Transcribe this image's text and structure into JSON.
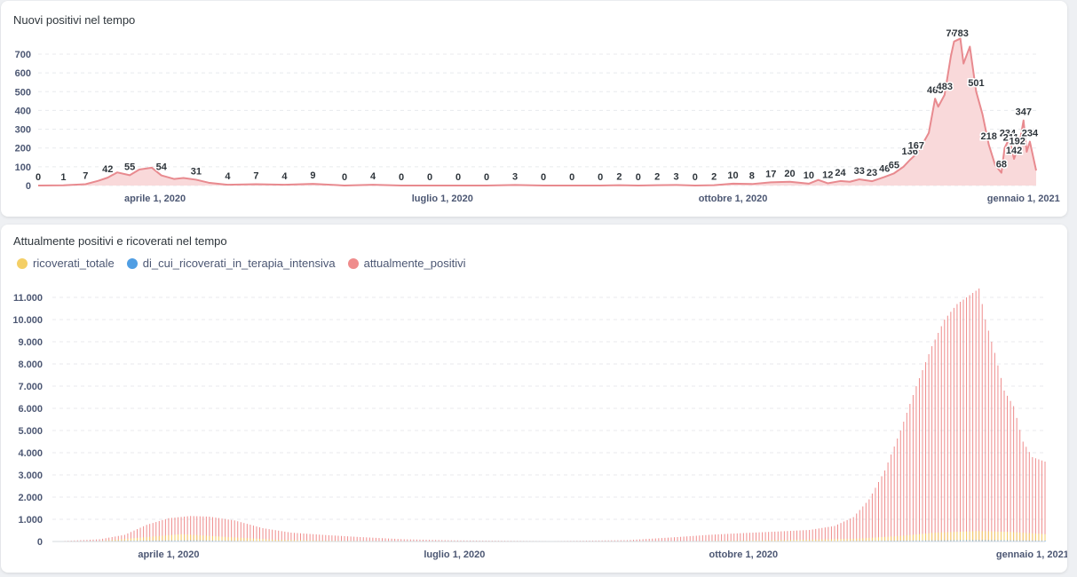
{
  "colors": {
    "line": "#e88a8f",
    "area": "#f9d9da",
    "ricoverati": "#f4cf66",
    "terapia": "#509ee3",
    "attualmente": "#ef8c8c"
  },
  "chart_data": [
    {
      "type": "area",
      "title": "Nuovi positivi nel tempo",
      "xlabel": "",
      "ylabel": "",
      "x_range": [
        "2020-02-24",
        "2021-01-05"
      ],
      "x_ticks": [
        {
          "date": "2020-04-01",
          "label": "aprile 1, 2020"
        },
        {
          "date": "2020-07-01",
          "label": "luglio 1, 2020"
        },
        {
          "date": "2020-10-01",
          "label": "ottobre 1, 2020"
        },
        {
          "date": "2021-01-01",
          "label": "gennaio 1, 2021"
        }
      ],
      "ylim": [
        0,
        700
      ],
      "y_ticks": [
        0,
        100,
        200,
        300,
        400,
        500,
        600,
        700
      ],
      "grid": true,
      "series": [
        {
          "points": [
            [
              "2020-02-24",
              0
            ],
            [
              "2020-03-03",
              1
            ],
            [
              "2020-03-10",
              7
            ],
            [
              "2020-03-14",
              25
            ],
            [
              "2020-03-17",
              42
            ],
            [
              "2020-03-20",
              70
            ],
            [
              "2020-03-24",
              55
            ],
            [
              "2020-03-27",
              85
            ],
            [
              "2020-03-31",
              95
            ],
            [
              "2020-04-03",
              54
            ],
            [
              "2020-04-07",
              35
            ],
            [
              "2020-04-10",
              40
            ],
            [
              "2020-04-14",
              31
            ],
            [
              "2020-04-18",
              15
            ],
            [
              "2020-04-24",
              4
            ],
            [
              "2020-05-03",
              7
            ],
            [
              "2020-05-12",
              4
            ],
            [
              "2020-05-21",
              9
            ],
            [
              "2020-05-31",
              0
            ],
            [
              "2020-06-09",
              4
            ],
            [
              "2020-06-18",
              0
            ],
            [
              "2020-06-27",
              0
            ],
            [
              "2020-07-06",
              0
            ],
            [
              "2020-07-15",
              0
            ],
            [
              "2020-07-24",
              3
            ],
            [
              "2020-08-02",
              0
            ],
            [
              "2020-08-11",
              0
            ],
            [
              "2020-08-20",
              0
            ],
            [
              "2020-08-26",
              2
            ],
            [
              "2020-09-01",
              0
            ],
            [
              "2020-09-07",
              2
            ],
            [
              "2020-09-13",
              3
            ],
            [
              "2020-09-19",
              0
            ],
            [
              "2020-09-25",
              2
            ],
            [
              "2020-10-01",
              10
            ],
            [
              "2020-10-07",
              8
            ],
            [
              "2020-10-13",
              17
            ],
            [
              "2020-10-19",
              20
            ],
            [
              "2020-10-25",
              10
            ],
            [
              "2020-10-28",
              30
            ],
            [
              "2020-10-31",
              12
            ],
            [
              "2020-11-04",
              24
            ],
            [
              "2020-11-07",
              20
            ],
            [
              "2020-11-10",
              33
            ],
            [
              "2020-11-14",
              23
            ],
            [
              "2020-11-18",
              46
            ],
            [
              "2020-11-21",
              65
            ],
            [
              "2020-11-24",
              100
            ],
            [
              "2020-11-26",
              136
            ],
            [
              "2020-11-28",
              167
            ],
            [
              "2020-11-30",
              220
            ],
            [
              "2020-12-02",
              280
            ],
            [
              "2020-12-04",
              463
            ],
            [
              "2020-12-05",
              420
            ],
            [
              "2020-12-07",
              483
            ],
            [
              "2020-12-09",
              690
            ],
            [
              "2020-12-10",
              767
            ],
            [
              "2020-12-12",
              783
            ],
            [
              "2020-12-13",
              650
            ],
            [
              "2020-12-15",
              740
            ],
            [
              "2020-12-17",
              501
            ],
            [
              "2020-12-19",
              380
            ],
            [
              "2020-12-21",
              218
            ],
            [
              "2020-12-23",
              110
            ],
            [
              "2020-12-25",
              68
            ],
            [
              "2020-12-26",
              200
            ],
            [
              "2020-12-27",
              234
            ],
            [
              "2020-12-28",
              211
            ],
            [
              "2020-12-29",
              142
            ],
            [
              "2020-12-30",
              192
            ],
            [
              "2020-12-31",
              250
            ],
            [
              "2021-01-01",
              347
            ],
            [
              "2021-01-02",
              180
            ],
            [
              "2021-01-03",
              234
            ],
            [
              "2021-01-05",
              80
            ]
          ]
        }
      ],
      "data_labels": [
        [
          "2020-02-24",
          0
        ],
        [
          "2020-03-03",
          1
        ],
        [
          "2020-03-10",
          7
        ],
        [
          "2020-03-17",
          42
        ],
        [
          "2020-03-24",
          55
        ],
        [
          "2020-04-03",
          54
        ],
        [
          "2020-04-14",
          31
        ],
        [
          "2020-04-24",
          4
        ],
        [
          "2020-05-03",
          7
        ],
        [
          "2020-05-12",
          4
        ],
        [
          "2020-05-21",
          9
        ],
        [
          "2020-05-31",
          0
        ],
        [
          "2020-06-09",
          4
        ],
        [
          "2020-06-18",
          0
        ],
        [
          "2020-06-27",
          0
        ],
        [
          "2020-07-06",
          0
        ],
        [
          "2020-07-15",
          0
        ],
        [
          "2020-07-24",
          3
        ],
        [
          "2020-08-02",
          0
        ],
        [
          "2020-08-11",
          0
        ],
        [
          "2020-08-20",
          0
        ],
        [
          "2020-08-26",
          2
        ],
        [
          "2020-09-01",
          0
        ],
        [
          "2020-09-07",
          2
        ],
        [
          "2020-09-13",
          3
        ],
        [
          "2020-09-19",
          0
        ],
        [
          "2020-09-25",
          2
        ],
        [
          "2020-10-01",
          10
        ],
        [
          "2020-10-07",
          8
        ],
        [
          "2020-10-13",
          17
        ],
        [
          "2020-10-19",
          20
        ],
        [
          "2020-10-25",
          10
        ],
        [
          "2020-10-31",
          12
        ],
        [
          "2020-11-04",
          24
        ],
        [
          "2020-11-10",
          33
        ],
        [
          "2020-11-14",
          23
        ],
        [
          "2020-11-18",
          46
        ],
        [
          "2020-11-21",
          65
        ],
        [
          "2020-11-26",
          136
        ],
        [
          "2020-11-28",
          167
        ],
        [
          "2020-12-04",
          463
        ],
        [
          "2020-12-07",
          483
        ],
        [
          "2020-12-10",
          767
        ],
        [
          "2020-12-12",
          783
        ],
        [
          "2020-12-17",
          501
        ],
        [
          "2020-12-21",
          218
        ],
        [
          "2020-12-25",
          68
        ],
        [
          "2020-12-27",
          234
        ],
        [
          "2020-12-28",
          211
        ],
        [
          "2020-12-29",
          142
        ],
        [
          "2020-12-30",
          192
        ],
        [
          "2021-01-01",
          347
        ],
        [
          "2021-01-03",
          234
        ]
      ]
    },
    {
      "type": "bar",
      "title": "Attualmente positivi e ricoverati nel tempo",
      "xlabel": "",
      "ylabel": "",
      "legend_position": "top-left",
      "x_range": [
        "2020-02-24",
        "2021-01-05"
      ],
      "x_ticks": [
        {
          "date": "2020-04-01",
          "label": "aprile 1, 2020"
        },
        {
          "date": "2020-07-01",
          "label": "luglio 1, 2020"
        },
        {
          "date": "2020-10-01",
          "label": "ottobre 1, 2020"
        },
        {
          "date": "2021-01-01",
          "label": "gennaio 1, 2021"
        }
      ],
      "ylim": [
        0,
        11000
      ],
      "y_ticks": [
        {
          "value": 0,
          "label": "0"
        },
        {
          "value": 1000,
          "label": "1.000"
        },
        {
          "value": 2000,
          "label": "2.000"
        },
        {
          "value": 3000,
          "label": "3.000"
        },
        {
          "value": 4000,
          "label": "4.000"
        },
        {
          "value": 5000,
          "label": "5.000"
        },
        {
          "value": 6000,
          "label": "6.000"
        },
        {
          "value": 7000,
          "label": "7.000"
        },
        {
          "value": 8000,
          "label": "8.000"
        },
        {
          "value": 9000,
          "label": "9.000"
        },
        {
          "value": 10000,
          "label": "10.000"
        },
        {
          "value": 11000,
          "label": "11.000"
        }
      ],
      "grid": true,
      "series": [
        {
          "name": "ricoverati_totale",
          "points": [
            [
              "2020-02-24",
              0
            ],
            [
              "2020-03-10",
              20
            ],
            [
              "2020-03-25",
              200
            ],
            [
              "2020-04-05",
              330
            ],
            [
              "2020-04-20",
              200
            ],
            [
              "2020-05-05",
              80
            ],
            [
              "2020-05-25",
              30
            ],
            [
              "2020-07-01",
              5
            ],
            [
              "2020-08-15",
              5
            ],
            [
              "2020-09-15",
              20
            ],
            [
              "2020-10-15",
              70
            ],
            [
              "2020-11-05",
              120
            ],
            [
              "2020-11-20",
              250
            ],
            [
              "2020-12-01",
              400
            ],
            [
              "2020-12-15",
              470
            ],
            [
              "2020-12-25",
              430
            ],
            [
              "2021-01-05",
              330
            ]
          ]
        },
        {
          "name": "di_cui_ricoverati_in_terapia_intensiva",
          "points": [
            [
              "2020-02-24",
              0
            ],
            [
              "2020-03-25",
              40
            ],
            [
              "2020-04-10",
              50
            ],
            [
              "2020-05-01",
              15
            ],
            [
              "2020-06-01",
              2
            ],
            [
              "2020-09-01",
              1
            ],
            [
              "2020-10-20",
              8
            ],
            [
              "2020-11-20",
              40
            ],
            [
              "2020-12-15",
              60
            ],
            [
              "2021-01-05",
              40
            ]
          ]
        },
        {
          "name": "attualmente_positivi",
          "points": [
            [
              "2020-02-24",
              0
            ],
            [
              "2020-03-01",
              40
            ],
            [
              "2020-03-10",
              100
            ],
            [
              "2020-03-18",
              300
            ],
            [
              "2020-03-25",
              750
            ],
            [
              "2020-04-01",
              1050
            ],
            [
              "2020-04-08",
              1150
            ],
            [
              "2020-04-14",
              1120
            ],
            [
              "2020-04-22",
              950
            ],
            [
              "2020-05-01",
              600
            ],
            [
              "2020-05-10",
              400
            ],
            [
              "2020-05-20",
              300
            ],
            [
              "2020-06-01",
              200
            ],
            [
              "2020-06-15",
              100
            ],
            [
              "2020-07-01",
              50
            ],
            [
              "2020-08-01",
              20
            ],
            [
              "2020-08-25",
              60
            ],
            [
              "2020-09-10",
              200
            ],
            [
              "2020-09-20",
              300
            ],
            [
              "2020-10-01",
              380
            ],
            [
              "2020-10-12",
              450
            ],
            [
              "2020-10-22",
              520
            ],
            [
              "2020-10-30",
              700
            ],
            [
              "2020-11-05",
              1100
            ],
            [
              "2020-11-10",
              1900
            ],
            [
              "2020-11-15",
              3200
            ],
            [
              "2020-11-20",
              5000
            ],
            [
              "2020-11-25",
              7000
            ],
            [
              "2020-11-30",
              8800
            ],
            [
              "2020-12-04",
              10000
            ],
            [
              "2020-12-08",
              10700
            ],
            [
              "2020-12-12",
              11100
            ],
            [
              "2020-12-15",
              11400
            ],
            [
              "2020-12-17",
              10000
            ],
            [
              "2020-12-20",
              8500
            ],
            [
              "2020-12-23",
              6800
            ],
            [
              "2020-12-26",
              6100
            ],
            [
              "2020-12-29",
              4500
            ],
            [
              "2021-01-01",
              3800
            ],
            [
              "2021-01-05",
              3600
            ]
          ]
        }
      ]
    }
  ]
}
